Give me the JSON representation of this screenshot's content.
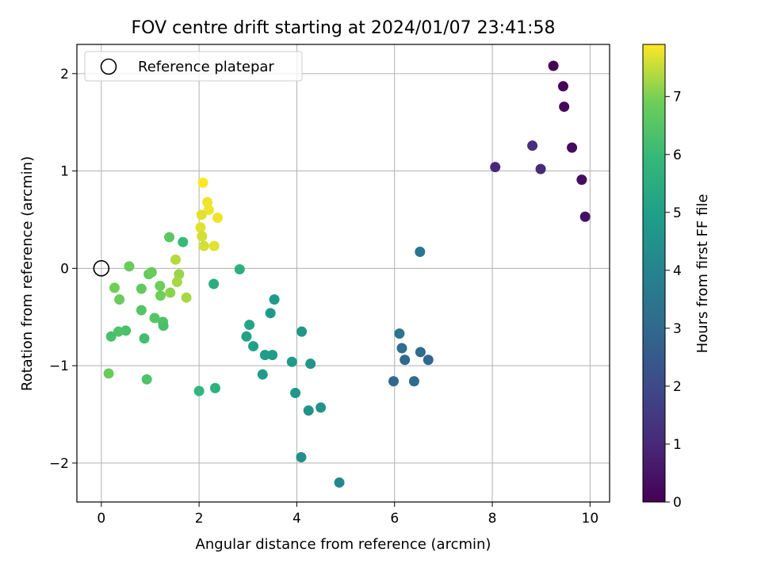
{
  "chart_data": {
    "type": "scatter",
    "title": "FOV centre drift starting at 2024/01/07 23:41:58",
    "xlabel": "Angular distance from reference (arcmin)",
    "ylabel": "Rotation from reference (arcmin)",
    "xlim": [
      -0.5,
      10.4
    ],
    "ylim": [
      -2.4,
      2.3
    ],
    "xticks": [
      0,
      2,
      4,
      6,
      8,
      10
    ],
    "xtick_labels": [
      "0",
      "2",
      "4",
      "6",
      "8",
      "10"
    ],
    "yticks": [
      -2,
      -1,
      0,
      1,
      2
    ],
    "ytick_labels": [
      "−2",
      "−1",
      "0",
      "1",
      "2"
    ],
    "grid": true,
    "legend": {
      "position": "top-left",
      "label": "Reference platepar"
    },
    "reference_point": {
      "x": 0,
      "y": 0
    },
    "colorbar": {
      "label": "Hours from first FF file",
      "colormap": "viridis",
      "range": [
        0,
        7.9
      ],
      "ticks": [
        0,
        1,
        2,
        3,
        4,
        5,
        6,
        7
      ],
      "tick_labels": [
        "0",
        "1",
        "2",
        "3",
        "4",
        "5",
        "6",
        "7"
      ]
    },
    "points": [
      {
        "x": 9.25,
        "y": 2.08,
        "h": 0.0
      },
      {
        "x": 9.45,
        "y": 1.87,
        "h": 0.1
      },
      {
        "x": 9.47,
        "y": 1.66,
        "h": 0.2
      },
      {
        "x": 9.63,
        "y": 1.24,
        "h": 0.25
      },
      {
        "x": 9.83,
        "y": 0.91,
        "h": 0.3
      },
      {
        "x": 9.9,
        "y": 0.53,
        "h": 0.35
      },
      {
        "x": 8.06,
        "y": 1.04,
        "h": 1.0
      },
      {
        "x": 8.82,
        "y": 1.26,
        "h": 1.2
      },
      {
        "x": 8.99,
        "y": 1.02,
        "h": 1.1
      },
      {
        "x": 6.52,
        "y": 0.17,
        "h": 3.5
      },
      {
        "x": 6.1,
        "y": -0.67,
        "h": 3.5
      },
      {
        "x": 6.15,
        "y": -0.82,
        "h": 3.2
      },
      {
        "x": 6.21,
        "y": -0.94,
        "h": 3.0
      },
      {
        "x": 6.53,
        "y": -0.86,
        "h": 3.1
      },
      {
        "x": 6.69,
        "y": -0.94,
        "h": 3.0
      },
      {
        "x": 5.98,
        "y": -1.16,
        "h": 3.0
      },
      {
        "x": 6.4,
        "y": -1.16,
        "h": 3.1
      },
      {
        "x": 3.54,
        "y": -0.32,
        "h": 4.8
      },
      {
        "x": 3.46,
        "y": -0.46,
        "h": 4.8
      },
      {
        "x": 4.1,
        "y": -0.65,
        "h": 4.7
      },
      {
        "x": 3.35,
        "y": -0.89,
        "h": 4.9
      },
      {
        "x": 3.5,
        "y": -0.89,
        "h": 4.9
      },
      {
        "x": 3.9,
        "y": -0.96,
        "h": 4.8
      },
      {
        "x": 4.28,
        "y": -0.98,
        "h": 4.6
      },
      {
        "x": 3.3,
        "y": -1.09,
        "h": 4.8
      },
      {
        "x": 3.97,
        "y": -1.28,
        "h": 4.7
      },
      {
        "x": 4.24,
        "y": -1.46,
        "h": 4.5
      },
      {
        "x": 4.49,
        "y": -1.43,
        "h": 4.5
      },
      {
        "x": 4.09,
        "y": -1.94,
        "h": 4.4
      },
      {
        "x": 4.87,
        "y": -2.2,
        "h": 4.2
      },
      {
        "x": 2.83,
        "y": -0.01,
        "h": 5.6
      },
      {
        "x": 2.3,
        "y": -0.16,
        "h": 5.5
      },
      {
        "x": 3.03,
        "y": -0.58,
        "h": 5.2
      },
      {
        "x": 2.97,
        "y": -0.7,
        "h": 5.1
      },
      {
        "x": 3.11,
        "y": -0.8,
        "h": 5.0
      },
      {
        "x": 2.0,
        "y": -1.26,
        "h": 5.8
      },
      {
        "x": 2.33,
        "y": -1.23,
        "h": 5.6
      },
      {
        "x": 1.67,
        "y": 0.27,
        "h": 6.0
      },
      {
        "x": 1.39,
        "y": 0.32,
        "h": 6.6
      },
      {
        "x": 0.57,
        "y": 0.02,
        "h": 6.8
      },
      {
        "x": 0.97,
        "y": -0.06,
        "h": 6.7
      },
      {
        "x": 1.03,
        "y": -0.04,
        "h": 6.8
      },
      {
        "x": 0.27,
        "y": -0.2,
        "h": 6.9
      },
      {
        "x": 0.82,
        "y": -0.21,
        "h": 6.7
      },
      {
        "x": 0.37,
        "y": -0.32,
        "h": 6.8
      },
      {
        "x": 1.2,
        "y": -0.18,
        "h": 6.9
      },
      {
        "x": 1.41,
        "y": -0.25,
        "h": 7.1
      },
      {
        "x": 1.21,
        "y": -0.28,
        "h": 6.9
      },
      {
        "x": 0.82,
        "y": -0.43,
        "h": 6.5
      },
      {
        "x": 1.09,
        "y": -0.51,
        "h": 6.5
      },
      {
        "x": 1.26,
        "y": -0.55,
        "h": 6.4
      },
      {
        "x": 1.27,
        "y": -0.59,
        "h": 6.3
      },
      {
        "x": 0.5,
        "y": -0.64,
        "h": 6.3
      },
      {
        "x": 0.35,
        "y": -0.65,
        "h": 6.4
      },
      {
        "x": 0.2,
        "y": -0.7,
        "h": 6.3
      },
      {
        "x": 0.88,
        "y": -0.72,
        "h": 6.2
      },
      {
        "x": 0.15,
        "y": -1.08,
        "h": 6.8
      },
      {
        "x": 0.93,
        "y": -1.14,
        "h": 6.4
      },
      {
        "x": 1.52,
        "y": 0.09,
        "h": 7.4
      },
      {
        "x": 1.59,
        "y": -0.06,
        "h": 7.2
      },
      {
        "x": 1.55,
        "y": -0.14,
        "h": 7.3
      },
      {
        "x": 1.74,
        "y": -0.3,
        "h": 7.3
      },
      {
        "x": 2.08,
        "y": 0.88,
        "h": 7.9
      },
      {
        "x": 2.17,
        "y": 0.68,
        "h": 7.8
      },
      {
        "x": 2.2,
        "y": 0.6,
        "h": 7.8
      },
      {
        "x": 2.05,
        "y": 0.55,
        "h": 7.7
      },
      {
        "x": 2.38,
        "y": 0.52,
        "h": 7.8
      },
      {
        "x": 2.03,
        "y": 0.42,
        "h": 7.7
      },
      {
        "x": 2.06,
        "y": 0.33,
        "h": 7.6
      },
      {
        "x": 2.1,
        "y": 0.23,
        "h": 7.6
      },
      {
        "x": 2.31,
        "y": 0.23,
        "h": 7.7
      }
    ]
  }
}
